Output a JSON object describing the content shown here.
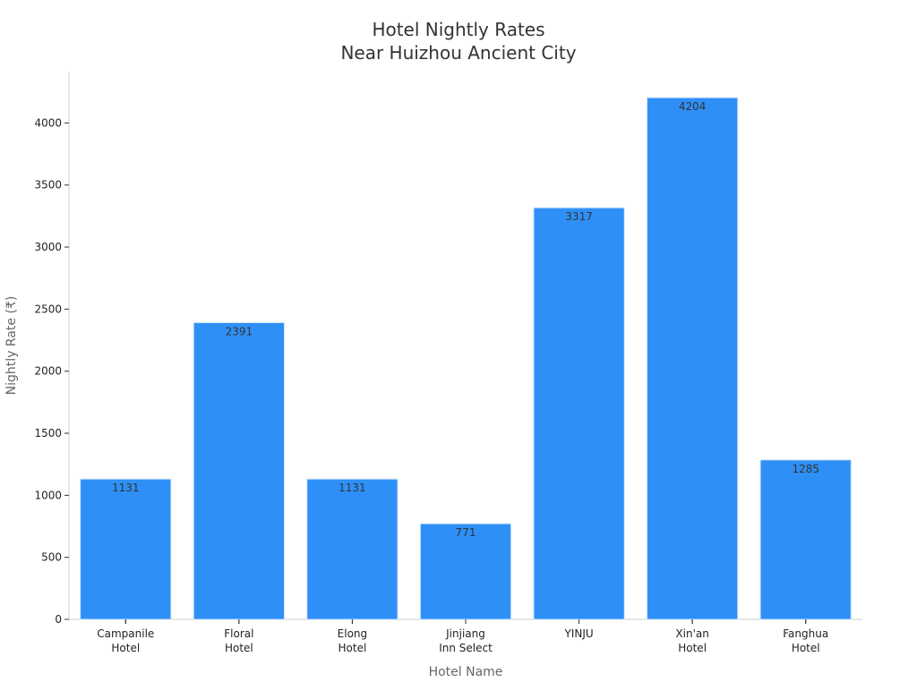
{
  "chart_data": {
    "type": "bar",
    "title_lines": [
      "Hotel Nightly Rates",
      "Near Huizhou Ancient City"
    ],
    "xlabel": "Hotel Name",
    "ylabel": "Nightly Rate (₹)",
    "categories": [
      [
        "Campanile",
        "Hotel"
      ],
      [
        "Floral",
        "Hotel"
      ],
      [
        "Elong",
        "Hotel"
      ],
      [
        "Jinjiang",
        "Inn Select"
      ],
      [
        "YINJU"
      ],
      [
        "Xin'an",
        "Hotel"
      ],
      [
        "Fanghua",
        "Hotel"
      ]
    ],
    "values": [
      1131,
      2391,
      1131,
      771,
      3317,
      4204,
      1285
    ],
    "data_labels": [
      "1131",
      "2391",
      "1131",
      "771",
      "3317",
      "4204",
      "1285"
    ],
    "yticks": [
      0,
      500,
      1000,
      1500,
      2000,
      2500,
      3000,
      3500,
      4000
    ],
    "ylim": [
      0,
      4414
    ],
    "grid": false,
    "legend": "none",
    "colors": {
      "bar": "#2e90f7",
      "bar_edge": "#cfe3fb",
      "title": "#333333",
      "axis_label": "#666666",
      "tick_label": "#222222",
      "value_label": "#333333",
      "axis_line": "#cccccc"
    }
  }
}
